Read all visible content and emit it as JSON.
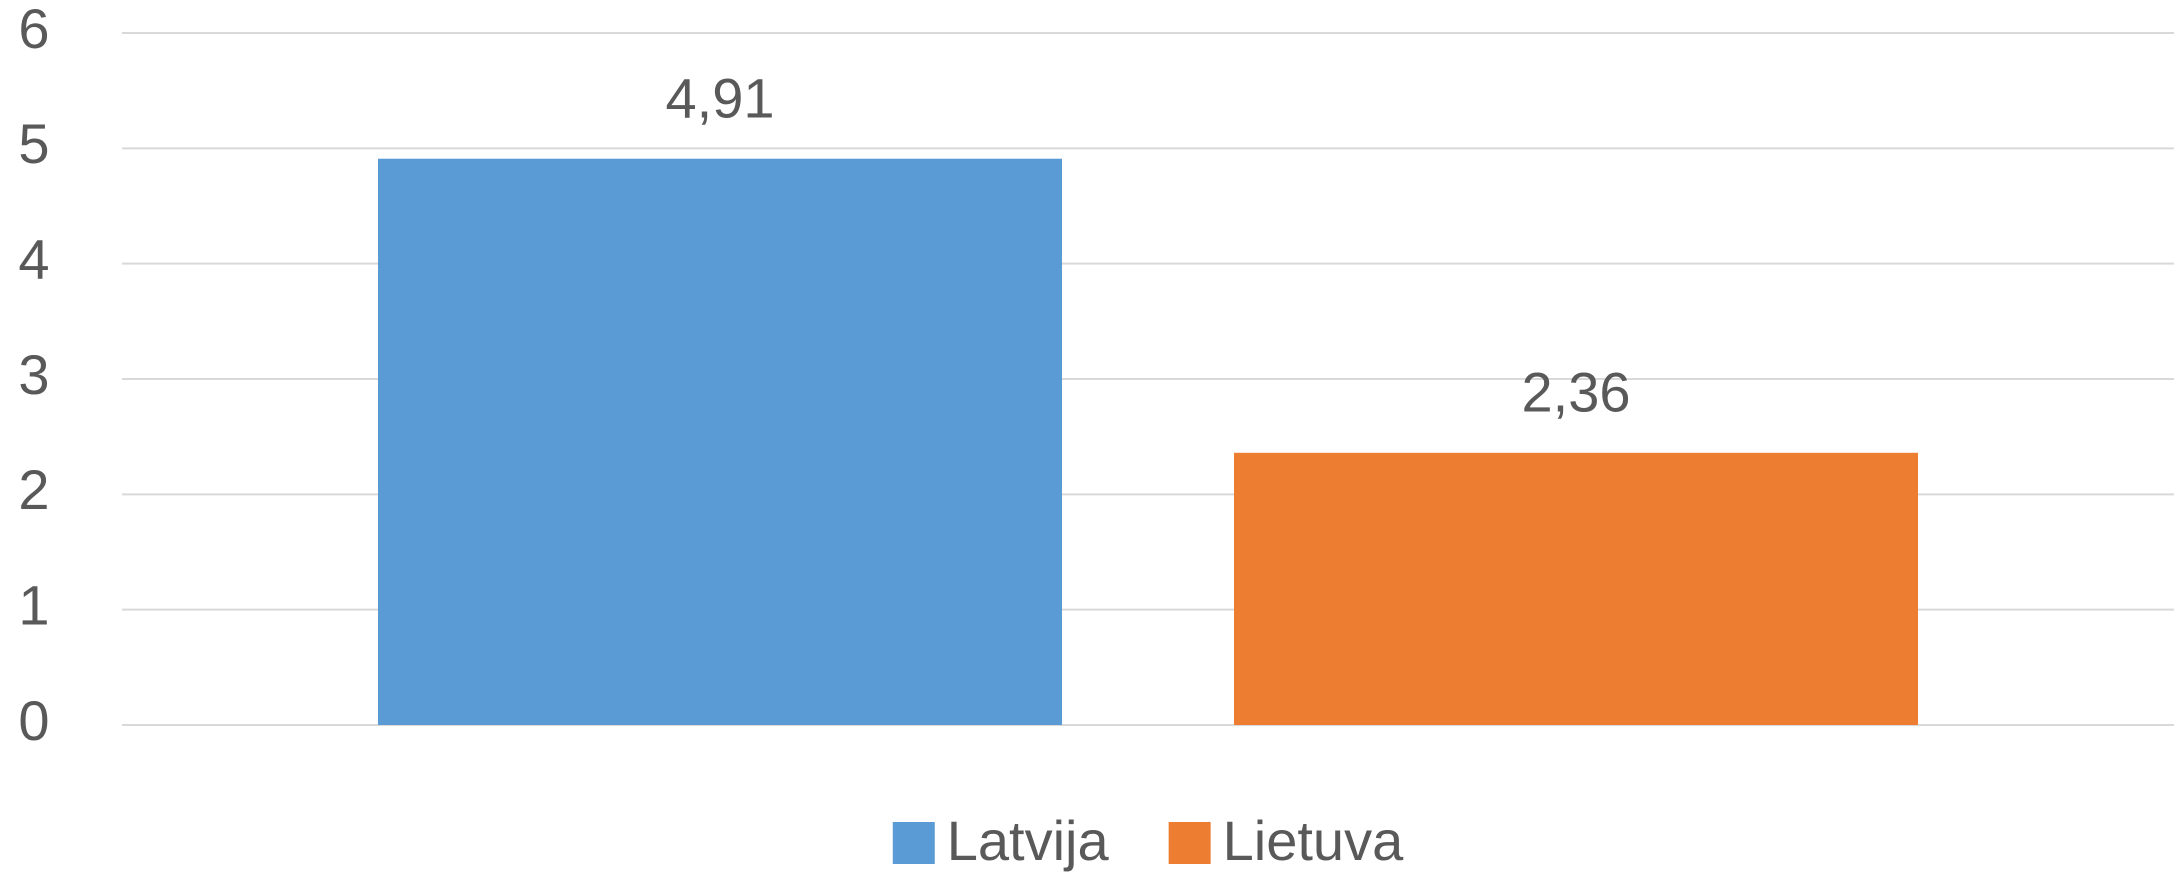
{
  "chart_data": {
    "type": "bar",
    "categories": [
      null
    ],
    "series": [
      {
        "name": "Latvija",
        "color": "#5b9bd5",
        "values": [
          4.91
        ],
        "value_labels": [
          "4,91"
        ]
      },
      {
        "name": "Lietuva",
        "color": "#ed7d31",
        "values": [
          2.36
        ],
        "value_labels": [
          "2,36"
        ]
      }
    ],
    "ylim": [
      0,
      6
    ],
    "yticks": [
      0,
      1,
      2,
      3,
      4,
      5,
      6
    ],
    "grid": true,
    "legend": "bottom"
  }
}
